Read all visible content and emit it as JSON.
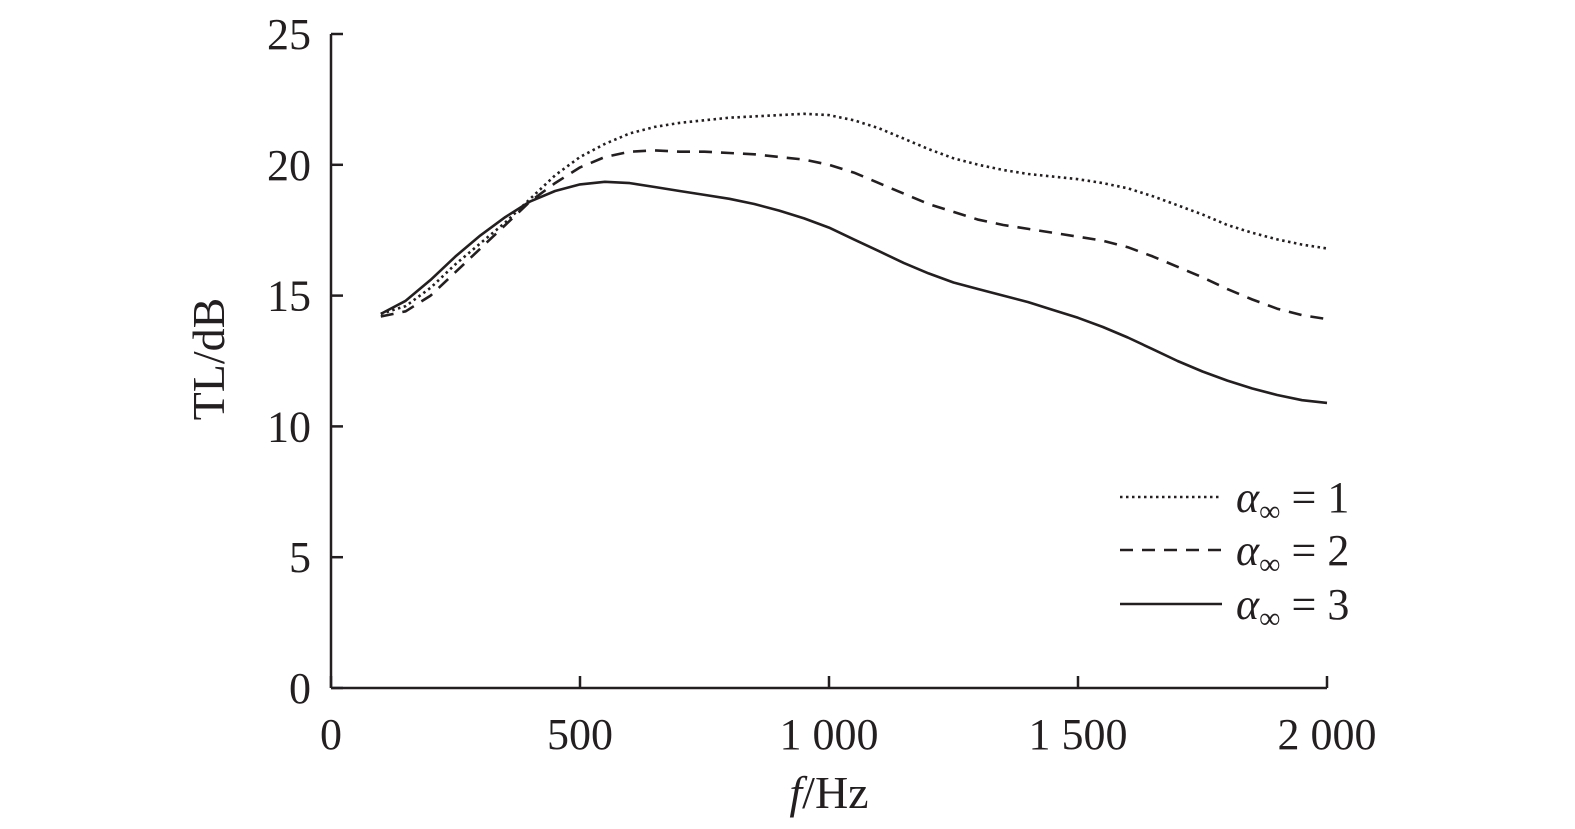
{
  "chart_data": {
    "type": "line",
    "title": "",
    "xlabel_italic": "f",
    "xlabel_rest": "/Hz",
    "ylabel": "TL/dB",
    "xlim": [
      0,
      2000
    ],
    "ylim": [
      0,
      25
    ],
    "x_ticks": [
      0,
      500,
      1000,
      1500,
      2000
    ],
    "x_tick_labels": [
      "0",
      "500",
      "1 000",
      "1 500",
      "2 000"
    ],
    "y_ticks": [
      0,
      5,
      10,
      15,
      20,
      25
    ],
    "y_tick_labels": [
      "0",
      "5",
      "10",
      "15",
      "20",
      "25"
    ],
    "grid": false,
    "legend_position": "bottom-right",
    "series": [
      {
        "name": "α∞ = 1",
        "label_symbol": "α",
        "label_subscript": "∞",
        "label_rest": " = 1",
        "dash": "dotted",
        "x": [
          100,
          150,
          200,
          250,
          300,
          350,
          400,
          450,
          500,
          550,
          600,
          650,
          700,
          750,
          800,
          850,
          900,
          950,
          1000,
          1050,
          1100,
          1150,
          1200,
          1250,
          1300,
          1350,
          1400,
          1450,
          1500,
          1550,
          1600,
          1650,
          1700,
          1750,
          1800,
          1850,
          1900,
          1950,
          2000
        ],
        "y": [
          14.3,
          14.6,
          15.3,
          16.2,
          17.0,
          17.8,
          18.7,
          19.6,
          20.3,
          20.8,
          21.2,
          21.45,
          21.6,
          21.7,
          21.8,
          21.85,
          21.9,
          21.95,
          21.9,
          21.7,
          21.4,
          21.0,
          20.6,
          20.25,
          20.0,
          19.8,
          19.65,
          19.55,
          19.45,
          19.3,
          19.1,
          18.8,
          18.45,
          18.1,
          17.7,
          17.4,
          17.15,
          16.95,
          16.8
        ]
      },
      {
        "name": "α∞ = 2",
        "label_symbol": "α",
        "label_subscript": "∞",
        "label_rest": " = 2",
        "dash": "dashed",
        "x": [
          100,
          150,
          200,
          250,
          300,
          350,
          400,
          450,
          500,
          550,
          600,
          650,
          700,
          750,
          800,
          850,
          900,
          950,
          1000,
          1050,
          1100,
          1150,
          1200,
          1250,
          1300,
          1350,
          1400,
          1450,
          1500,
          1550,
          1600,
          1650,
          1700,
          1750,
          1800,
          1850,
          1900,
          1950,
          2000
        ],
        "y": [
          14.2,
          14.4,
          15.0,
          15.9,
          16.8,
          17.7,
          18.6,
          19.3,
          19.9,
          20.3,
          20.5,
          20.55,
          20.5,
          20.5,
          20.45,
          20.4,
          20.3,
          20.2,
          20.0,
          19.7,
          19.3,
          18.9,
          18.5,
          18.2,
          17.9,
          17.7,
          17.55,
          17.4,
          17.25,
          17.1,
          16.85,
          16.5,
          16.1,
          15.7,
          15.25,
          14.85,
          14.5,
          14.25,
          14.1
        ]
      },
      {
        "name": "α∞ = 3",
        "label_symbol": "α",
        "label_subscript": "∞",
        "label_rest": " = 3",
        "dash": "solid",
        "x": [
          100,
          150,
          200,
          250,
          300,
          350,
          400,
          450,
          500,
          550,
          600,
          650,
          700,
          750,
          800,
          850,
          900,
          950,
          1000,
          1050,
          1100,
          1150,
          1200,
          1250,
          1300,
          1350,
          1400,
          1450,
          1500,
          1550,
          1600,
          1650,
          1700,
          1750,
          1800,
          1850,
          1900,
          1950,
          2000
        ],
        "y": [
          14.3,
          14.8,
          15.6,
          16.5,
          17.3,
          18.0,
          18.6,
          19.0,
          19.25,
          19.35,
          19.3,
          19.15,
          19.0,
          18.85,
          18.7,
          18.5,
          18.25,
          17.95,
          17.6,
          17.15,
          16.7,
          16.25,
          15.85,
          15.5,
          15.25,
          15.0,
          14.75,
          14.45,
          14.15,
          13.8,
          13.4,
          12.95,
          12.5,
          12.1,
          11.75,
          11.45,
          11.2,
          11.0,
          10.9
        ]
      }
    ]
  }
}
